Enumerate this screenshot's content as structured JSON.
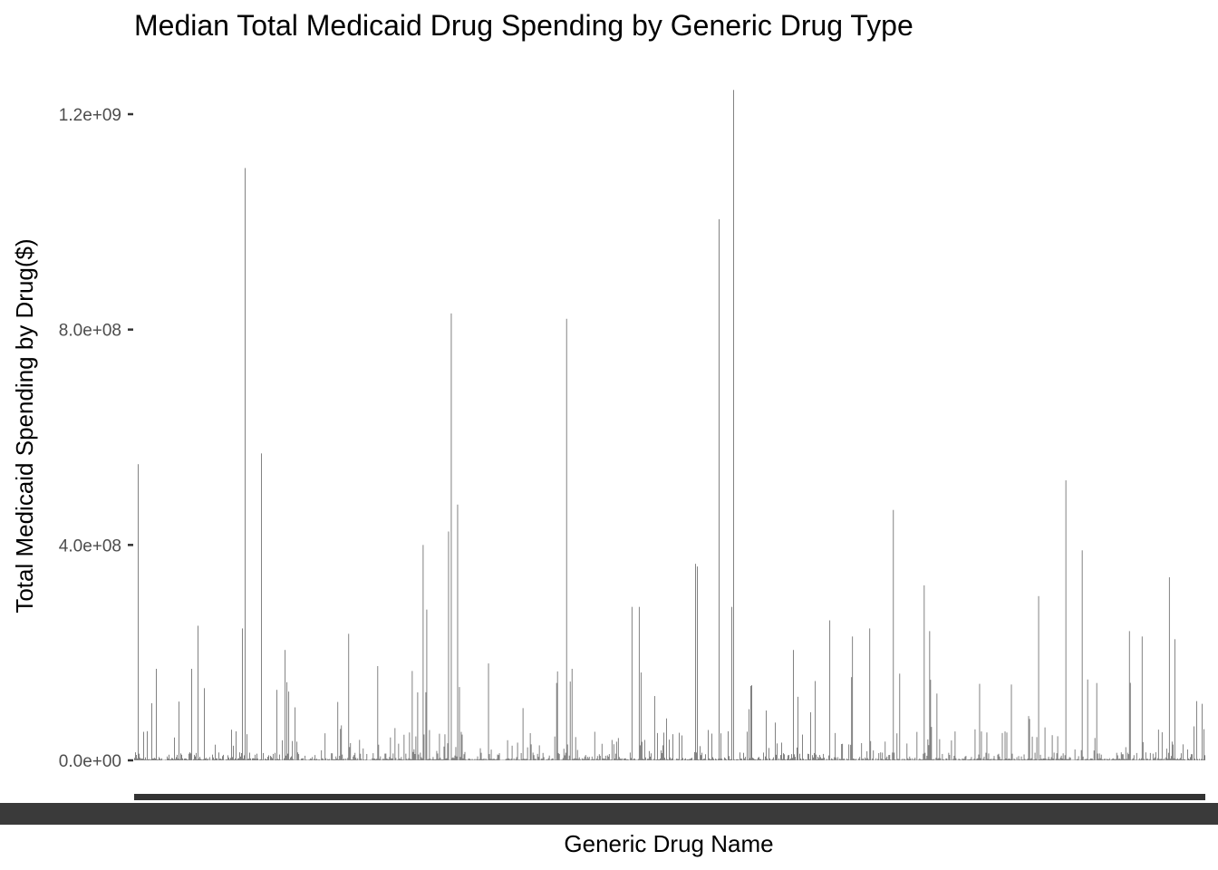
{
  "chart_data": {
    "type": "bar",
    "title": "Median Total Medicaid Drug Spending by Generic Drug Type",
    "xlabel": "Generic Drug Name",
    "ylabel": "Total Medicaid Spending by Drug($)",
    "ylim": [
      0,
      1250000000
    ],
    "y_ticks": [
      {
        "value": 0,
        "label": "0.0e+00"
      },
      {
        "value": 400000000,
        "label": "4.0e+08"
      },
      {
        "value": 800000000,
        "label": "8.0e+08"
      },
      {
        "value": 1200000000,
        "label": "1.2e+09"
      }
    ],
    "x_tick_labels_note": "Generic drug name tick labels overplotted and illegible",
    "n_categories": 1180,
    "notable_bars": [
      {
        "index": 4,
        "value": 550000000
      },
      {
        "index": 24,
        "value": 170000000
      },
      {
        "index": 63,
        "value": 170000000
      },
      {
        "index": 70,
        "value": 250000000
      },
      {
        "index": 119,
        "value": 245000000
      },
      {
        "index": 122,
        "value": 1100000000
      },
      {
        "index": 140,
        "value": 570000000
      },
      {
        "index": 166,
        "value": 205000000
      },
      {
        "index": 236,
        "value": 235000000
      },
      {
        "index": 268,
        "value": 175000000
      },
      {
        "index": 318,
        "value": 400000000
      },
      {
        "index": 322,
        "value": 280000000
      },
      {
        "index": 346,
        "value": 425000000
      },
      {
        "index": 349,
        "value": 830000000
      },
      {
        "index": 356,
        "value": 475000000
      },
      {
        "index": 390,
        "value": 180000000
      },
      {
        "index": 476,
        "value": 820000000
      },
      {
        "index": 482,
        "value": 170000000
      },
      {
        "index": 548,
        "value": 285000000
      },
      {
        "index": 556,
        "value": 285000000
      },
      {
        "index": 620,
        "value": 360000000
      },
      {
        "index": 618,
        "value": 365000000
      },
      {
        "index": 644,
        "value": 1005000000
      },
      {
        "index": 660,
        "value": 1245000000
      },
      {
        "index": 658,
        "value": 285000000
      },
      {
        "index": 726,
        "value": 205000000
      },
      {
        "index": 766,
        "value": 260000000
      },
      {
        "index": 791,
        "value": 230000000
      },
      {
        "index": 810,
        "value": 245000000
      },
      {
        "index": 836,
        "value": 465000000
      },
      {
        "index": 870,
        "value": 325000000
      },
      {
        "index": 876,
        "value": 240000000
      },
      {
        "index": 996,
        "value": 305000000
      },
      {
        "index": 1026,
        "value": 520000000
      },
      {
        "index": 1044,
        "value": 390000000
      },
      {
        "index": 1096,
        "value": 240000000
      },
      {
        "index": 1110,
        "value": 230000000
      },
      {
        "index": 1140,
        "value": 340000000
      },
      {
        "index": 1146,
        "value": 225000000
      },
      {
        "index": 1170,
        "value": 110000000
      }
    ]
  }
}
